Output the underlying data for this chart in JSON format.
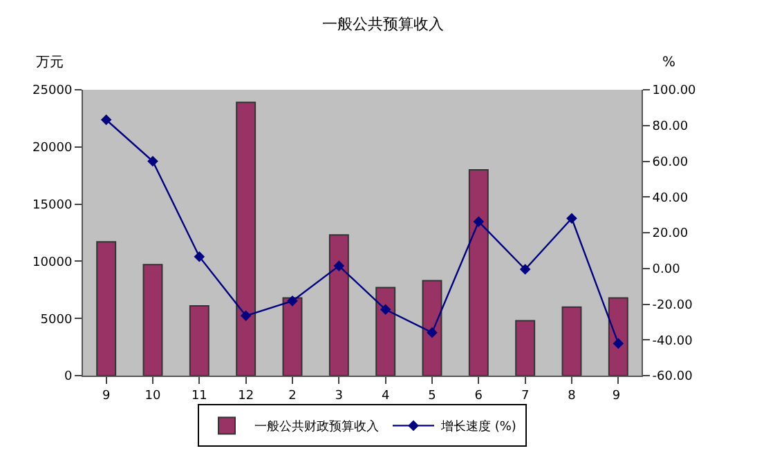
{
  "chart_data": {
    "type": "bar",
    "title": "一般公共预算收入",
    "ylabel": "万元",
    "y2label": "%",
    "categories": [
      "9",
      "10",
      "11",
      "12",
      "2",
      "3",
      "4",
      "5",
      "6",
      "7",
      "8",
      "9 "
    ],
    "series": [
      {
        "name": "一般公共财政预算收入",
        "color": "#993366",
        "values": [
          11700,
          9700,
          6100,
          23900,
          6800,
          12300,
          7700,
          8300,
          18000,
          4800,
          6000,
          6800
        ]
      },
      {
        "name": "增长速度 (%)",
        "type": "line",
        "axis": "y2",
        "color": "#000080",
        "marker": "diamond",
        "values": [
          83.2,
          60.0,
          6.6,
          -26.5,
          -18.2,
          1.4,
          -23.0,
          -35.9,
          26.2,
          -0.5,
          28.0,
          -42.0
        ]
      }
    ],
    "ylim": [
      0,
      25000
    ],
    "yticks": [
      0,
      5000,
      10000,
      15000,
      20000,
      25000
    ],
    "y2lim": [
      -60,
      100
    ],
    "y2ticks": [
      {
        "value": -60,
        "label": "-60.00"
      },
      {
        "value": -40,
        "label": "-40.00"
      },
      {
        "value": -20,
        "label": "-20.00"
      },
      {
        "value": 0,
        "label": "0.00"
      },
      {
        "value": 20,
        "label": "20.00"
      },
      {
        "value": 40,
        "label": "40.00"
      },
      {
        "value": 60,
        "label": "60.00"
      },
      {
        "value": 80,
        "label": "80.00"
      },
      {
        "value": 100,
        "label": "100.00"
      }
    ],
    "grid": false,
    "legend": "bottom"
  }
}
